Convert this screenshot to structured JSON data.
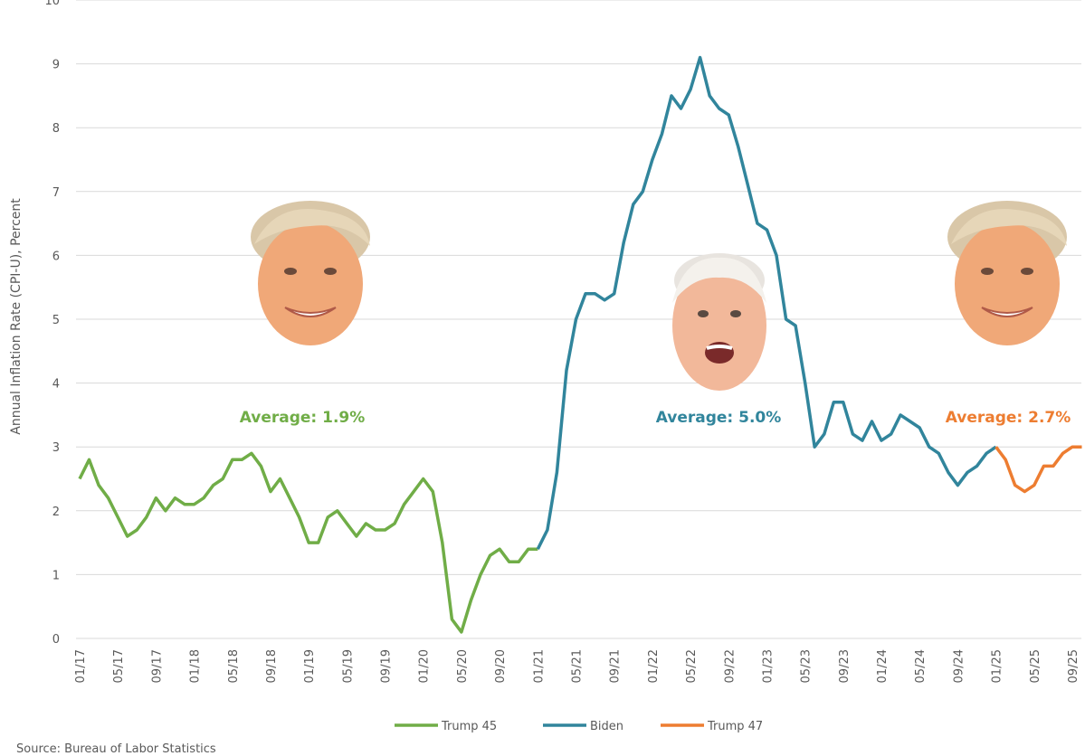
{
  "chart_data": {
    "type": "line",
    "ylabel": "Annual Inflation Rate (CPI-U), Percent",
    "ylim": [
      0,
      10
    ],
    "yticks": [
      "0",
      "1",
      "2",
      "3",
      "4",
      "5",
      "6",
      "7",
      "8",
      "9",
      "10"
    ],
    "xlabels": [
      "01/17",
      "05/17",
      "09/17",
      "01/18",
      "05/18",
      "09/18",
      "01/19",
      "05/19",
      "09/19",
      "01/20",
      "05/20",
      "09/20",
      "01/21",
      "05/21",
      "09/21",
      "01/22",
      "05/22",
      "09/22",
      "01/23",
      "05/23",
      "09/23",
      "01/24",
      "05/24",
      "09/24",
      "01/25",
      "05/25",
      "09/25"
    ],
    "start_month": "01/17",
    "series": [
      {
        "name": "Trump 45",
        "color": "#70ad47",
        "start_index": 0,
        "values": [
          2.5,
          2.8,
          2.4,
          2.2,
          1.9,
          1.6,
          1.7,
          1.9,
          2.2,
          2.0,
          2.2,
          2.1,
          2.1,
          2.2,
          2.4,
          2.5,
          2.8,
          2.8,
          2.9,
          2.7,
          2.3,
          2.5,
          2.2,
          1.9,
          1.5,
          1.5,
          1.9,
          2.0,
          1.8,
          1.6,
          1.8,
          1.7,
          1.7,
          1.8,
          2.1,
          2.3,
          2.5,
          2.3,
          1.5,
          0.3,
          0.1,
          0.6,
          1.0,
          1.3,
          1.4,
          1.2,
          1.2,
          1.4,
          1.4
        ]
      },
      {
        "name": "Biden",
        "color": "#31859c",
        "start_index": 48,
        "values": [
          1.4,
          1.7,
          2.6,
          4.2,
          5.0,
          5.4,
          5.4,
          5.3,
          5.4,
          6.2,
          6.8,
          7.0,
          7.5,
          7.9,
          8.5,
          8.3,
          8.6,
          9.1,
          8.5,
          8.3,
          8.2,
          7.7,
          7.1,
          6.5,
          6.4,
          6.0,
          5.0,
          4.9,
          4.0,
          3.0,
          3.2,
          3.7,
          3.7,
          3.2,
          3.1,
          3.4,
          3.1,
          3.2,
          3.5,
          3.4,
          3.3,
          3.0,
          2.9,
          2.6,
          2.4,
          2.6,
          2.7,
          2.9,
          3.0
        ]
      },
      {
        "name": "Trump 47",
        "color": "#ed7d31",
        "start_index": 96,
        "values": [
          3.0,
          2.8,
          2.4,
          2.3,
          2.4,
          2.7,
          2.7,
          2.9,
          3.0,
          3.0
        ]
      }
    ],
    "annotations": [
      {
        "text": "Average: 1.9%",
        "color": "#70ad47"
      },
      {
        "text": "Average: 5.0%",
        "color": "#31859c"
      },
      {
        "text": "Average: 2.7%",
        "color": "#ed7d31"
      }
    ],
    "legend": [
      "Trump 45",
      "Biden",
      "Trump 47"
    ],
    "legend_position": "bottom-center",
    "source": "Source: Bureau of Labor Statistics"
  },
  "portraits": [
    {
      "name": "trump-45-portrait"
    },
    {
      "name": "biden-portrait"
    },
    {
      "name": "trump-47-portrait"
    }
  ],
  "colors": {
    "skin": "#f0a878",
    "hair_trump": "#d9c7a8",
    "hair_biden": "#e8e4df"
  }
}
